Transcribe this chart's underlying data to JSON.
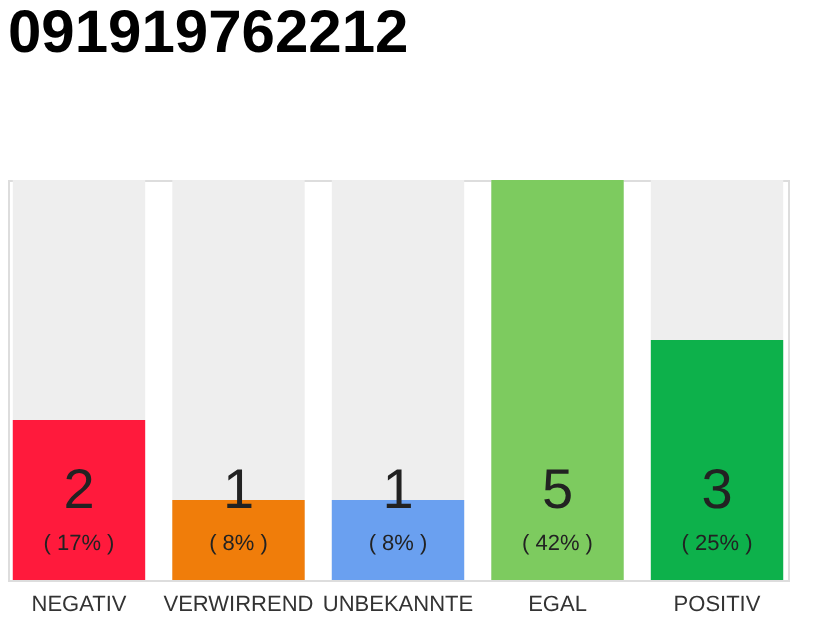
{
  "chart_data": {
    "type": "bar",
    "title": "091919762212",
    "categories": [
      "NEGATIV",
      "VERWIRREND",
      "UNBEKANNTE",
      "EGAL",
      "POSITIV"
    ],
    "tick_labels": "x",
    "data_labels": true,
    "series": [
      {
        "colors": [
          "#ff1a3c",
          "#f07d0a",
          "#6aa0f0",
          "#7dcb5f",
          "#0db14b"
        ],
        "values": [
          2,
          1,
          1,
          5,
          3
        ]
      }
    ],
    "annotations": [
      "( 17% )",
      "( 8% )",
      "( 8% )",
      "( 42% )",
      "( 25% )"
    ]
  }
}
